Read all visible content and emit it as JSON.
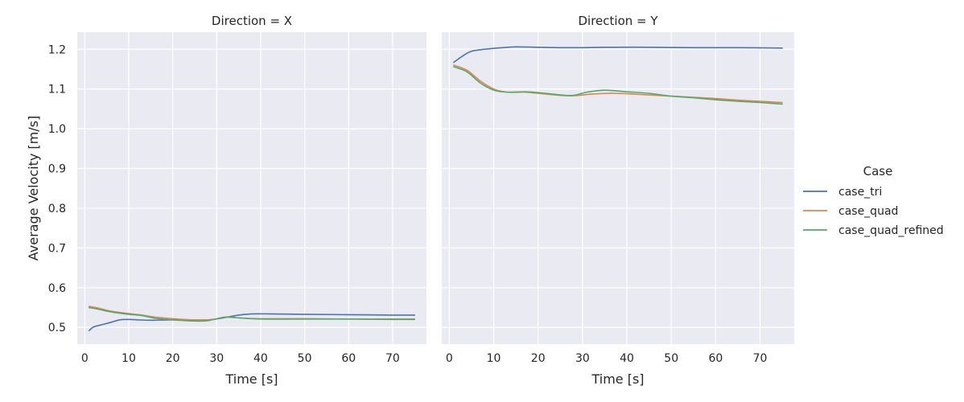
{
  "chart_data": {
    "type": "line",
    "ylabel": "Average Velocity [m/s]",
    "legend": {
      "title": "Case",
      "placement": "right"
    },
    "grid": true,
    "series_meta": [
      {
        "name": "case_tri",
        "color": "#4c72b0"
      },
      {
        "name": "case_quad",
        "color": "#dd8452"
      },
      {
        "name": "case_quad_refined",
        "color": "#55a868"
      }
    ],
    "panels": [
      {
        "title": "Direction = X",
        "xlabel": "Time [s]",
        "xlim": [
          -1.7,
          77.7
        ],
        "ylim": [
          0.458,
          1.243
        ],
        "xticks": [
          0,
          10,
          20,
          30,
          40,
          50,
          60,
          70
        ],
        "yticks": [
          0.5,
          0.6,
          0.7,
          0.8,
          0.9,
          1.0,
          1.1,
          1.2
        ],
        "ytick_labels": [
          "0.5",
          "0.6",
          "0.7",
          "0.8",
          "0.9",
          "1.0",
          "1.1",
          "1.2"
        ],
        "series": [
          {
            "name": "case_tri",
            "points": [
              [
                1,
                0.492
              ],
              [
                2,
                0.501
              ],
              [
                4,
                0.507
              ],
              [
                6,
                0.513
              ],
              [
                8,
                0.519
              ],
              [
                10,
                0.52
              ],
              [
                12,
                0.519
              ],
              [
                15,
                0.518
              ],
              [
                20,
                0.519
              ],
              [
                25,
                0.518
              ],
              [
                29,
                0.52
              ],
              [
                32,
                0.525
              ],
              [
                35,
                0.531
              ],
              [
                38,
                0.534
              ],
              [
                42,
                0.534
              ],
              [
                50,
                0.533
              ],
              [
                60,
                0.532
              ],
              [
                70,
                0.531
              ],
              [
                75,
                0.531
              ]
            ]
          },
          {
            "name": "case_quad",
            "points": [
              [
                1,
                0.553
              ],
              [
                3,
                0.549
              ],
              [
                6,
                0.541
              ],
              [
                10,
                0.535
              ],
              [
                13,
                0.531
              ],
              [
                16,
                0.526
              ],
              [
                20,
                0.522
              ],
              [
                25,
                0.519
              ],
              [
                29,
                0.52
              ],
              [
                32,
                0.526
              ],
              [
                35,
                0.524
              ],
              [
                40,
                0.522
              ],
              [
                50,
                0.522
              ],
              [
                60,
                0.521
              ],
              [
                70,
                0.521
              ],
              [
                75,
                0.521
              ]
            ]
          },
          {
            "name": "case_quad_refined",
            "points": [
              [
                1,
                0.55
              ],
              [
                3,
                0.546
              ],
              [
                6,
                0.539
              ],
              [
                10,
                0.533
              ],
              [
                13,
                0.53
              ],
              [
                16,
                0.523
              ],
              [
                20,
                0.519
              ],
              [
                25,
                0.516
              ],
              [
                28,
                0.517
              ],
              [
                32,
                0.526
              ],
              [
                35,
                0.524
              ],
              [
                40,
                0.521
              ],
              [
                50,
                0.521
              ],
              [
                60,
                0.521
              ],
              [
                70,
                0.52
              ],
              [
                75,
                0.52
              ]
            ]
          }
        ]
      },
      {
        "title": "Direction = Y",
        "xlabel": "Time [s]",
        "xlim": [
          -1.7,
          77.7
        ],
        "ylim": [
          0.458,
          1.243
        ],
        "xticks": [
          0,
          10,
          20,
          30,
          40,
          50,
          60,
          70
        ],
        "yticks": [
          0.5,
          0.6,
          0.7,
          0.8,
          0.9,
          1.0,
          1.1,
          1.2
        ],
        "ytick_labels": [],
        "series": [
          {
            "name": "case_tri",
            "points": [
              [
                1,
                1.167
              ],
              [
                3,
                1.183
              ],
              [
                5,
                1.195
              ],
              [
                8,
                1.2
              ],
              [
                12,
                1.204
              ],
              [
                15,
                1.206
              ],
              [
                20,
                1.205
              ],
              [
                25,
                1.204
              ],
              [
                30,
                1.204
              ],
              [
                35,
                1.205
              ],
              [
                45,
                1.205
              ],
              [
                55,
                1.204
              ],
              [
                65,
                1.204
              ],
              [
                75,
                1.203
              ]
            ]
          },
          {
            "name": "case_quad",
            "points": [
              [
                1,
                1.16
              ],
              [
                4,
                1.147
              ],
              [
                7,
                1.12
              ],
              [
                10,
                1.1
              ],
              [
                13,
                1.092
              ],
              [
                17,
                1.092
              ],
              [
                20,
                1.089
              ],
              [
                25,
                1.084
              ],
              [
                28,
                1.083
              ],
              [
                32,
                1.087
              ],
              [
                36,
                1.089
              ],
              [
                40,
                1.088
              ],
              [
                45,
                1.085
              ],
              [
                50,
                1.082
              ],
              [
                55,
                1.079
              ],
              [
                60,
                1.076
              ],
              [
                65,
                1.072
              ],
              [
                70,
                1.069
              ],
              [
                75,
                1.066
              ]
            ]
          },
          {
            "name": "case_quad_refined",
            "points": [
              [
                1,
                1.156
              ],
              [
                4,
                1.143
              ],
              [
                7,
                1.115
              ],
              [
                10,
                1.097
              ],
              [
                13,
                1.092
              ],
              [
                17,
                1.093
              ],
              [
                20,
                1.091
              ],
              [
                25,
                1.085
              ],
              [
                28,
                1.084
              ],
              [
                31,
                1.092
              ],
              [
                35,
                1.097
              ],
              [
                40,
                1.093
              ],
              [
                45,
                1.089
              ],
              [
                50,
                1.082
              ],
              [
                55,
                1.078
              ],
              [
                60,
                1.073
              ],
              [
                65,
                1.069
              ],
              [
                70,
                1.066
              ],
              [
                75,
                1.062
              ]
            ]
          }
        ]
      }
    ]
  }
}
